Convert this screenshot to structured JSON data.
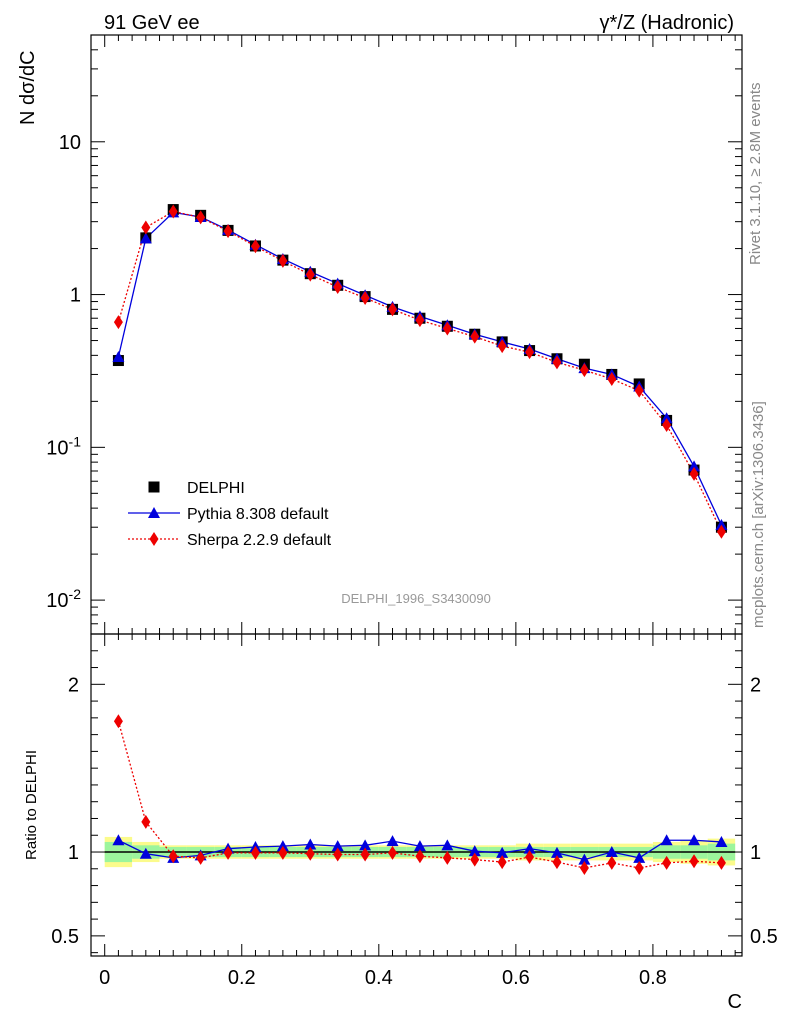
{
  "header": {
    "left_title": "91 GeV ee",
    "right_title": "γ*/Z (Hadronic)"
  },
  "watermark": "DELPHI_1996_S3430090",
  "side_labels": {
    "rivet": "Rivet 3.1.10, ≥ 2.8M events",
    "mcplots": "mcplots.cern.ch [arXiv:1306.3436]"
  },
  "colors": {
    "data": "#000000",
    "pythia": "#0000dd",
    "sherpa": "#ee0000",
    "band_inner": "#9cf59c",
    "band_outer": "#fbfb8c",
    "watermark": "#999999"
  },
  "chart_data": [
    {
      "type": "scatter",
      "panel": "main",
      "xlabel": "C",
      "ylabel": "N dσ/dC",
      "yscale": "log",
      "xlim": [
        -0.02,
        0.93
      ],
      "ylim": [
        0.006,
        50
      ],
      "y_ticks": [
        "10^-2",
        "10^-1",
        "1",
        "10"
      ],
      "x": [
        0.02,
        0.06,
        0.1,
        0.14,
        0.18,
        0.22,
        0.26,
        0.3,
        0.34,
        0.38,
        0.42,
        0.46,
        0.5,
        0.54,
        0.58,
        0.62,
        0.66,
        0.7,
        0.74,
        0.78,
        0.82,
        0.86,
        0.9
      ],
      "legend_position": "middle-left",
      "series": [
        {
          "name": "DELPHI",
          "marker": "square",
          "values": [
            0.37,
            2.35,
            3.6,
            3.3,
            2.63,
            2.08,
            1.68,
            1.37,
            1.15,
            0.97,
            0.8,
            0.7,
            0.62,
            0.55,
            0.49,
            0.43,
            0.38,
            0.35,
            0.3,
            0.26,
            0.15,
            0.071,
            0.03
          ]
        },
        {
          "name": "Pythia 8.308 default",
          "marker": "triangle",
          "values": [
            0.39,
            2.33,
            3.45,
            3.22,
            2.65,
            2.12,
            1.71,
            1.41,
            1.18,
            0.99,
            0.83,
            0.72,
            0.63,
            0.55,
            0.49,
            0.44,
            0.38,
            0.33,
            0.3,
            0.25,
            0.155,
            0.075,
            0.031
          ]
        },
        {
          "name": "Sherpa 2.2.9 default",
          "marker": "diamond",
          "values": [
            0.66,
            2.75,
            3.5,
            3.2,
            2.6,
            2.07,
            1.66,
            1.35,
            1.12,
            0.95,
            0.8,
            0.68,
            0.6,
            0.53,
            0.46,
            0.42,
            0.36,
            0.32,
            0.28,
            0.235,
            0.14,
            0.067,
            0.028
          ]
        }
      ]
    },
    {
      "type": "line",
      "panel": "ratio",
      "xlabel": "C",
      "ylabel": "Ratio to DELPHI",
      "xlim": [
        -0.02,
        0.93
      ],
      "ylim": [
        0.38,
        2.3
      ],
      "x_ticks": [
        "0",
        "0.2",
        "0.4",
        "0.6",
        "0.8"
      ],
      "y_ticks": [
        "0.5",
        "1",
        "2"
      ],
      "x": [
        0.02,
        0.06,
        0.1,
        0.14,
        0.18,
        0.22,
        0.26,
        0.3,
        0.34,
        0.38,
        0.42,
        0.46,
        0.5,
        0.54,
        0.58,
        0.62,
        0.66,
        0.7,
        0.74,
        0.78,
        0.82,
        0.86,
        0.9
      ],
      "band_inner": [
        0.06,
        0.04,
        0.03,
        0.03,
        0.03,
        0.03,
        0.03,
        0.03,
        0.03,
        0.03,
        0.03,
        0.03,
        0.03,
        0.03,
        0.03,
        0.03,
        0.03,
        0.03,
        0.03,
        0.03,
        0.04,
        0.04,
        0.05
      ],
      "band_outer": [
        0.09,
        0.06,
        0.04,
        0.04,
        0.04,
        0.04,
        0.04,
        0.04,
        0.04,
        0.04,
        0.04,
        0.04,
        0.04,
        0.04,
        0.04,
        0.05,
        0.05,
        0.05,
        0.05,
        0.05,
        0.06,
        0.07,
        0.08
      ],
      "series": [
        {
          "name": "Pythia 8.308 default",
          "values": [
            1.07,
            0.99,
            0.965,
            0.98,
            1.02,
            1.03,
            1.035,
            1.045,
            1.035,
            1.04,
            1.065,
            1.035,
            1.04,
            1.005,
            0.995,
            1.02,
            0.995,
            0.955,
            1.0,
            0.965,
            1.07,
            1.07,
            1.06
          ]
        },
        {
          "name": "Sherpa 2.2.9 default",
          "values": [
            1.78,
            1.18,
            0.975,
            0.965,
            0.995,
            0.995,
            0.995,
            0.99,
            0.985,
            0.985,
            0.995,
            0.975,
            0.965,
            0.955,
            0.94,
            0.97,
            0.94,
            0.905,
            0.935,
            0.905,
            0.935,
            0.945,
            0.935
          ]
        }
      ]
    }
  ]
}
